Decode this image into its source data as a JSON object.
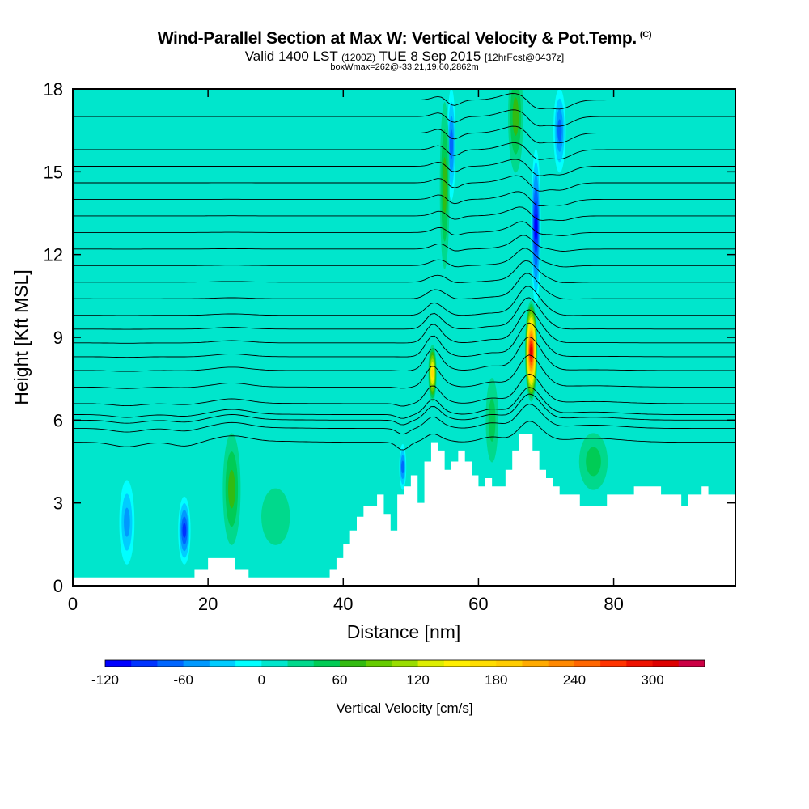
{
  "chart_data": {
    "type": "heatmap",
    "title": "Wind-Parallel Section at Max W: Vertical Velocity & Pot.Temp.",
    "title_mark": "(C)",
    "subtitle_main": "Valid 1400 LST",
    "subtitle_utc": "(1200Z)",
    "subtitle_date": "TUE 8 Sep 2015",
    "subtitle_fcst": "[12hrFcst@0437z]",
    "subtitle2": "boxWmax=262@-33.21,19.60,2862m",
    "xlabel": "Distance [nm]",
    "ylabel": "Height [Kft MSL]",
    "xlim": [
      0,
      98
    ],
    "ylim": [
      0,
      18
    ],
    "x_ticks": [
      0,
      20,
      40,
      60,
      80
    ],
    "y_ticks": [
      0,
      3,
      6,
      9,
      12,
      15,
      18
    ],
    "colorbar": {
      "label": "Vertical Velocity [cm/s]",
      "tick_labels": [
        "-120",
        "-60",
        "0",
        "60",
        "120",
        "180",
        "240",
        "300"
      ],
      "tick_values": [
        -120,
        -60,
        0,
        60,
        120,
        180,
        240,
        300
      ],
      "range": [
        -120,
        340
      ],
      "bin_width": 20,
      "colors": [
        "#0000ff",
        "#0033ff",
        "#0066ff",
        "#0099ff",
        "#00ccff",
        "#00ffff",
        "#00e6cc",
        "#00d98c",
        "#00cc55",
        "#33bb11",
        "#66cc00",
        "#99dd00",
        "#ddee00",
        "#ffee00",
        "#ffdd00",
        "#ffcc00",
        "#ffaa00",
        "#ff8800",
        "#ff6600",
        "#ff3300",
        "#ee1100",
        "#dd0000",
        "#cc0044"
      ]
    },
    "background_level": 0,
    "terrain": [
      [
        0,
        0.3
      ],
      [
        18,
        0.3
      ],
      [
        18,
        0.6
      ],
      [
        20,
        0.6
      ],
      [
        20,
        1.0
      ],
      [
        24,
        1.0
      ],
      [
        24,
        0.6
      ],
      [
        26,
        0.6
      ],
      [
        26,
        0.3
      ],
      [
        38,
        0.3
      ],
      [
        38,
        0.6
      ],
      [
        39,
        0.6
      ],
      [
        39,
        1.0
      ],
      [
        40,
        1.0
      ],
      [
        40,
        1.5
      ],
      [
        41,
        1.5
      ],
      [
        41,
        2.0
      ],
      [
        42,
        2.0
      ],
      [
        42,
        2.5
      ],
      [
        43,
        2.5
      ],
      [
        43,
        2.9
      ],
      [
        45,
        2.9
      ],
      [
        45,
        3.3
      ],
      [
        46,
        3.3
      ],
      [
        46,
        2.6
      ],
      [
        47,
        2.6
      ],
      [
        47,
        2.0
      ],
      [
        48,
        2.0
      ],
      [
        48,
        3.3
      ],
      [
        49,
        3.3
      ],
      [
        49,
        3.6
      ],
      [
        50,
        3.6
      ],
      [
        50,
        4.0
      ],
      [
        51,
        4.0
      ],
      [
        51,
        3.0
      ],
      [
        52,
        3.0
      ],
      [
        52,
        4.5
      ],
      [
        53,
        4.5
      ],
      [
        53,
        5.2
      ],
      [
        54,
        5.2
      ],
      [
        54,
        4.9
      ],
      [
        55,
        4.9
      ],
      [
        55,
        4.2
      ],
      [
        56,
        4.2
      ],
      [
        56,
        4.5
      ],
      [
        57,
        4.5
      ],
      [
        57,
        4.9
      ],
      [
        58,
        4.9
      ],
      [
        58,
        4.5
      ],
      [
        59,
        4.5
      ],
      [
        59,
        4.0
      ],
      [
        60,
        4.0
      ],
      [
        60,
        3.6
      ],
      [
        61,
        3.6
      ],
      [
        61,
        3.9
      ],
      [
        62,
        3.9
      ],
      [
        62,
        3.6
      ],
      [
        64,
        3.6
      ],
      [
        64,
        4.2
      ],
      [
        65,
        4.2
      ],
      [
        65,
        4.9
      ],
      [
        66,
        4.9
      ],
      [
        66,
        5.5
      ],
      [
        68,
        5.5
      ],
      [
        68,
        4.9
      ],
      [
        69,
        4.9
      ],
      [
        69,
        4.2
      ],
      [
        70,
        4.2
      ],
      [
        70,
        3.9
      ],
      [
        71,
        3.9
      ],
      [
        71,
        3.6
      ],
      [
        72,
        3.6
      ],
      [
        72,
        3.3
      ],
      [
        75,
        3.3
      ],
      [
        75,
        2.9
      ],
      [
        79,
        2.9
      ],
      [
        79,
        3.3
      ],
      [
        83,
        3.3
      ],
      [
        83,
        3.6
      ],
      [
        87,
        3.6
      ],
      [
        87,
        3.3
      ],
      [
        90,
        3.3
      ],
      [
        90,
        2.9
      ],
      [
        91,
        2.9
      ],
      [
        91,
        3.3
      ],
      [
        93,
        3.3
      ],
      [
        93,
        3.6
      ],
      [
        94,
        3.6
      ],
      [
        94,
        3.3
      ],
      [
        98,
        3.3
      ]
    ],
    "velocity_features": [
      {
        "x": 67.8,
        "y": 8.5,
        "wx": 0.8,
        "wy": 1.8,
        "value": 300
      },
      {
        "x": 53.2,
        "y": 7.7,
        "wx": 0.5,
        "wy": 1.0,
        "value": 150
      },
      {
        "x": 68.5,
        "y": 13.0,
        "wx": 0.6,
        "wy": 2.8,
        "value": -110
      },
      {
        "x": 56.0,
        "y": 16.0,
        "wx": 0.5,
        "wy": 2.0,
        "value": -80
      },
      {
        "x": 72.0,
        "y": 16.5,
        "wx": 0.8,
        "wy": 1.5,
        "value": -70
      },
      {
        "x": 48.8,
        "y": 4.3,
        "wx": 0.4,
        "wy": 0.8,
        "value": -70
      },
      {
        "x": 8.0,
        "y": 2.3,
        "wx": 1.0,
        "wy": 1.5,
        "value": -60
      },
      {
        "x": 16.5,
        "y": 2.0,
        "wx": 0.8,
        "wy": 1.2,
        "value": -90
      },
      {
        "x": 23.5,
        "y": 3.5,
        "wx": 1.2,
        "wy": 2.0,
        "value": 50
      },
      {
        "x": 55.0,
        "y": 14.5,
        "wx": 0.6,
        "wy": 3.0,
        "value": 60
      },
      {
        "x": 65.5,
        "y": 17.0,
        "wx": 1.0,
        "wy": 2.0,
        "value": 50
      },
      {
        "x": 62.0,
        "y": 6.0,
        "wx": 0.8,
        "wy": 1.5,
        "value": 40
      },
      {
        "x": 77.0,
        "y": 4.5,
        "wx": 2.0,
        "wy": 1.0,
        "value": 30
      },
      {
        "x": 30.0,
        "y": 2.5,
        "wx": 2.0,
        "wy": 1.0,
        "value": 20
      }
    ],
    "isentrope_base_heights": [
      5.2,
      5.7,
      6.0,
      6.2,
      6.6,
      7.2,
      7.8,
      8.3,
      8.8,
      9.3,
      9.8,
      10.4,
      11.0,
      11.6,
      12.2,
      12.8,
      13.4,
      14.0,
      14.6,
      15.2,
      15.8,
      16.4,
      17.0,
      17.6
    ]
  }
}
